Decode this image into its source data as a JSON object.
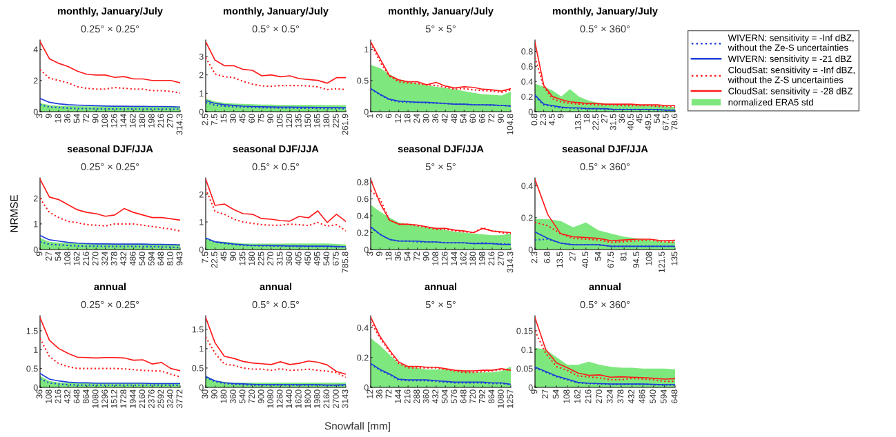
{
  "chart_data": [
    {
      "type": "line",
      "title": "monthly, January/July",
      "subtitle": "0.25° × 0.25°",
      "legend": "right",
      "categories": [
        "3",
        "9",
        "18",
        "36",
        "54",
        "72",
        "90",
        "108",
        "126",
        "144",
        "162",
        "180",
        "198",
        "216",
        "270",
        "314.3"
      ],
      "ylim": [
        0,
        4.6
      ],
      "yticks": [
        0,
        2,
        4
      ],
      "series": [
        {
          "name": "WIVERN: sensitivity = -Inf dBZ,\nwithout the Ze-S uncertainties",
          "color": "#1f3fd8",
          "line_style": "dotted",
          "values": [
            0.45,
            0.3,
            0.27,
            0.22,
            0.2,
            0.2,
            0.18,
            0.18,
            0.17,
            0.17,
            0.17,
            0.16,
            0.16,
            0.16,
            0.16,
            0.15
          ]
        },
        {
          "name": "WIVERN: sensitivity = -21 dBZ",
          "color": "#1f3fd8",
          "line_style": "solid",
          "values": [
            0.85,
            0.6,
            0.5,
            0.45,
            0.42,
            0.4,
            0.38,
            0.36,
            0.35,
            0.35,
            0.34,
            0.34,
            0.33,
            0.33,
            0.32,
            0.3
          ]
        },
        {
          "name": "CloudSat: sensitivity = -Inf dBZ,\nwithout the Z-S uncertainties",
          "color": "#ff1a1a",
          "line_style": "dotted",
          "values": [
            2.7,
            2.15,
            2.0,
            1.85,
            1.6,
            1.5,
            1.45,
            1.45,
            1.55,
            1.5,
            1.45,
            1.45,
            1.35,
            1.35,
            1.3,
            1.2
          ]
        },
        {
          "name": "CloudSat: sensitivity = -28 dBZ",
          "color": "#ff1a1a",
          "line_style": "solid",
          "values": [
            4.5,
            3.4,
            3.1,
            2.9,
            2.6,
            2.4,
            2.35,
            2.35,
            2.2,
            2.25,
            2.1,
            2.1,
            2.0,
            2.0,
            2.0,
            1.85
          ]
        },
        {
          "name": "normalized ERA5 std",
          "type": "area",
          "color": "#7ee87e",
          "values": [
            0.55,
            0.42,
            0.38,
            0.36,
            0.35,
            0.34,
            0.34,
            0.33,
            0.33,
            0.33,
            0.33,
            0.33,
            0.33,
            0.33,
            0.32,
            0.32
          ]
        }
      ]
    },
    {
      "type": "line",
      "title": "monthly, January/July",
      "subtitle": "0.5° × 0.5°",
      "categories": [
        "2.5",
        "7.5",
        "15",
        "30",
        "45",
        "60",
        "75",
        "90",
        "105",
        "120",
        "135",
        "150",
        "165",
        "180",
        "225",
        "261.9"
      ],
      "ylim": [
        0,
        3.9
      ],
      "yticks": [
        0,
        1,
        2,
        3
      ],
      "series": [
        {
          "color": "#1f3fd8",
          "line_style": "dotted",
          "values": [
            0.5,
            0.35,
            0.3,
            0.27,
            0.25,
            0.23,
            0.22,
            0.21,
            0.2,
            0.2,
            0.19,
            0.19,
            0.18,
            0.17,
            0.17,
            0.16
          ]
        },
        {
          "color": "#1f3fd8",
          "line_style": "solid",
          "values": [
            0.6,
            0.45,
            0.38,
            0.34,
            0.3,
            0.28,
            0.27,
            0.26,
            0.25,
            0.25,
            0.24,
            0.24,
            0.23,
            0.22,
            0.22,
            0.21
          ]
        },
        {
          "color": "#ff1a1a",
          "line_style": "dotted",
          "values": [
            2.95,
            2.05,
            1.9,
            1.85,
            1.65,
            1.5,
            1.4,
            1.38,
            1.42,
            1.42,
            1.42,
            1.4,
            1.35,
            1.2,
            1.25,
            1.2
          ]
        },
        {
          "color": "#ff1a1a",
          "line_style": "solid",
          "values": [
            3.8,
            2.8,
            2.5,
            2.5,
            2.3,
            2.25,
            1.95,
            2.0,
            1.9,
            1.95,
            1.8,
            1.75,
            1.7,
            1.55,
            1.85,
            1.85
          ]
        },
        {
          "type": "area",
          "color": "#7ee87e",
          "values": [
            0.7,
            0.55,
            0.48,
            0.44,
            0.42,
            0.4,
            0.38,
            0.38,
            0.37,
            0.37,
            0.37,
            0.37,
            0.37,
            0.36,
            0.36,
            0.36
          ]
        }
      ]
    },
    {
      "type": "line",
      "title": "monthly, January/July",
      "subtitle": "5° × 5°",
      "categories": [
        "1",
        "3",
        "6",
        "12",
        "18",
        "24",
        "30",
        "36",
        "42",
        "48",
        "54",
        "60",
        "66",
        "72",
        "90",
        "104.8"
      ],
      "ylim": [
        0,
        1.15
      ],
      "yticks": [
        0,
        0.5,
        1
      ],
      "series": [
        {
          "color": "#1f3fd8",
          "line_style": "dotted",
          "values": [
            0.36,
            0.27,
            0.19,
            0.16,
            0.15,
            0.15,
            0.14,
            0.14,
            0.13,
            0.12,
            0.12,
            0.11,
            0.11,
            0.1,
            0.1,
            0.09
          ]
        },
        {
          "color": "#1f3fd8",
          "line_style": "solid",
          "values": [
            0.37,
            0.28,
            0.2,
            0.17,
            0.16,
            0.15,
            0.15,
            0.14,
            0.13,
            0.12,
            0.12,
            0.11,
            0.11,
            0.11,
            0.1,
            0.09
          ]
        },
        {
          "color": "#ff1a1a",
          "line_style": "dotted",
          "values": [
            1.1,
            0.8,
            0.57,
            0.48,
            0.46,
            0.45,
            0.43,
            0.42,
            0.39,
            0.36,
            0.37,
            0.35,
            0.34,
            0.33,
            0.31,
            0.35
          ]
        },
        {
          "color": "#ff1a1a",
          "line_style": "solid",
          "values": [
            1.12,
            0.85,
            0.58,
            0.51,
            0.48,
            0.48,
            0.43,
            0.47,
            0.41,
            0.38,
            0.4,
            0.39,
            0.36,
            0.35,
            0.33,
            0.37
          ]
        },
        {
          "type": "area",
          "color": "#7ee87e",
          "values": [
            0.75,
            0.7,
            0.6,
            0.52,
            0.48,
            0.45,
            0.42,
            0.4,
            0.38,
            0.36,
            0.33,
            0.3,
            0.28,
            0.27,
            0.26,
            0.32
          ]
        }
      ]
    },
    {
      "type": "line",
      "title": "monthly, January/July",
      "subtitle": "0.5° × 360°",
      "categories": [
        "0.8",
        "2.3",
        "4.5",
        "9",
        null,
        "13.5",
        "18",
        "22.5",
        "27",
        "31.5",
        "36",
        "40.5",
        "45",
        "49.5",
        "54",
        "67.5",
        "78.6"
      ],
      "ylim": [
        0,
        0.95
      ],
      "yticks": [
        0,
        0.2,
        0.4,
        0.6,
        0.8
      ],
      "series": [
        {
          "color": "#1f3fd8",
          "line_style": "dotted",
          "values": [
            0.2,
            0.09,
            0.07,
            0.05,
            0.05,
            0.04,
            0.04,
            0.04,
            0.03,
            0.03,
            0.03,
            0.03,
            0.03,
            0.03,
            0.02,
            0.02,
            0.02
          ]
        },
        {
          "color": "#1f3fd8",
          "line_style": "solid",
          "values": [
            0.22,
            0.1,
            0.08,
            0.06,
            0.05,
            0.05,
            0.04,
            0.04,
            0.04,
            0.03,
            0.03,
            0.03,
            0.03,
            0.03,
            0.03,
            0.02,
            0.02
          ]
        },
        {
          "color": "#ff1a1a",
          "line_style": "dotted",
          "values": [
            0.72,
            0.33,
            0.17,
            0.13,
            0.11,
            0.1,
            0.1,
            0.09,
            0.09,
            0.09,
            0.08,
            0.08,
            0.08,
            0.08,
            0.07,
            0.07,
            0.06
          ]
        },
        {
          "color": "#ff1a1a",
          "line_style": "solid",
          "values": [
            0.92,
            0.35,
            0.2,
            0.16,
            0.13,
            0.12,
            0.11,
            0.11,
            0.1,
            0.1,
            0.1,
            0.1,
            0.09,
            0.09,
            0.09,
            0.08,
            0.08
          ]
        },
        {
          "type": "area",
          "color": "#7ee87e",
          "values": [
            0.37,
            0.33,
            0.28,
            0.2,
            0.3,
            0.2,
            0.15,
            0.12,
            0.11,
            0.1,
            0.1,
            0.09,
            0.09,
            0.08,
            0.08,
            0.07,
            0.06
          ]
        }
      ]
    },
    {
      "type": "line",
      "title": "seasonal DJF/JJA",
      "subtitle": "0.25° × 0.25°",
      "ylabel": "NRMSE",
      "categories": [
        "9",
        "27",
        "54",
        "108",
        "162",
        "216",
        "270",
        "324",
        "378",
        "432",
        "486",
        "540",
        "594",
        "648",
        "810",
        "943"
      ],
      "ylim": [
        0,
        2.8
      ],
      "yticks": [
        0,
        1,
        2
      ],
      "series": [
        {
          "color": "#1f3fd8",
          "line_style": "dotted",
          "values": [
            0.3,
            0.2,
            0.18,
            0.16,
            0.14,
            0.13,
            0.13,
            0.12,
            0.12,
            0.12,
            0.12,
            0.11,
            0.11,
            0.1,
            0.09,
            0.07
          ]
        },
        {
          "color": "#1f3fd8",
          "line_style": "solid",
          "values": [
            0.55,
            0.38,
            0.33,
            0.28,
            0.25,
            0.23,
            0.22,
            0.22,
            0.21,
            0.21,
            0.21,
            0.21,
            0.2,
            0.2,
            0.19,
            0.18
          ]
        },
        {
          "color": "#ff1a1a",
          "line_style": "dotted",
          "values": [
            2.0,
            1.45,
            1.25,
            1.1,
            1.05,
            0.97,
            0.95,
            0.92,
            1.0,
            1.0,
            1.0,
            0.95,
            0.9,
            0.85,
            0.8,
            0.72
          ]
        },
        {
          "color": "#ff1a1a",
          "line_style": "solid",
          "values": [
            2.75,
            2.05,
            1.95,
            1.75,
            1.55,
            1.45,
            1.4,
            1.3,
            1.35,
            1.6,
            1.45,
            1.35,
            1.25,
            1.25,
            1.2,
            1.15
          ]
        },
        {
          "type": "area",
          "color": "#7ee87e",
          "values": [
            0.45,
            0.3,
            0.27,
            0.25,
            0.24,
            0.23,
            0.23,
            0.22,
            0.22,
            0.22,
            0.22,
            0.22,
            0.22,
            0.22,
            0.2,
            0.2
          ]
        }
      ]
    },
    {
      "type": "line",
      "title": "seasonal DJF/JJA",
      "subtitle": "0.5° × 0.5°",
      "categories": [
        "7.5",
        "22.5",
        "45",
        "90",
        "135",
        "180",
        "225",
        "270",
        "315",
        "360",
        "405",
        "450",
        "495",
        "540",
        "675",
        "785.8"
      ],
      "ylim": [
        0,
        2.6
      ],
      "yticks": [
        0,
        1,
        2
      ],
      "series": [
        {
          "color": "#1f3fd8",
          "line_style": "dotted",
          "values": [
            0.4,
            0.27,
            0.22,
            0.18,
            0.15,
            0.14,
            0.13,
            0.13,
            0.12,
            0.12,
            0.11,
            0.11,
            0.11,
            0.1,
            0.1,
            0.09
          ]
        },
        {
          "color": "#1f3fd8",
          "line_style": "solid",
          "values": [
            0.42,
            0.28,
            0.24,
            0.2,
            0.17,
            0.15,
            0.15,
            0.14,
            0.14,
            0.13,
            0.13,
            0.12,
            0.12,
            0.12,
            0.11,
            0.1
          ]
        },
        {
          "color": "#ff1a1a",
          "line_style": "dotted",
          "values": [
            2.2,
            1.38,
            1.28,
            1.1,
            1.0,
            0.95,
            0.9,
            0.88,
            0.88,
            0.92,
            0.9,
            0.87,
            0.98,
            0.85,
            0.9,
            0.68
          ]
        },
        {
          "color": "#ff1a1a",
          "line_style": "solid",
          "values": [
            2.55,
            1.6,
            1.65,
            1.45,
            1.3,
            1.28,
            1.12,
            1.1,
            1.05,
            1.03,
            1.2,
            1.15,
            1.4,
            0.98,
            1.28,
            1.02
          ]
        },
        {
          "type": "area",
          "color": "#7ee87e",
          "values": [
            0.4,
            0.3,
            0.28,
            0.25,
            0.22,
            0.21,
            0.21,
            0.21,
            0.21,
            0.22,
            0.22,
            0.22,
            0.22,
            0.22,
            0.2,
            0.18
          ]
        }
      ]
    },
    {
      "type": "line",
      "title": "seasonal DJF/JJA",
      "subtitle": "5° × 5°",
      "categories": [
        "3",
        "9",
        "18",
        "36",
        "54",
        "72",
        "90",
        "108",
        "126",
        "144",
        "162",
        "180",
        "198",
        "216",
        "270",
        "314.3"
      ],
      "ylim": [
        0,
        0.85
      ],
      "yticks": [
        0,
        0.2,
        0.4,
        0.6,
        0.8
      ],
      "series": [
        {
          "color": "#1f3fd8",
          "line_style": "dotted",
          "values": [
            0.26,
            0.18,
            0.12,
            0.1,
            0.1,
            0.09,
            0.09,
            0.09,
            0.08,
            0.08,
            0.08,
            0.07,
            0.08,
            0.07,
            0.07,
            0.06
          ]
        },
        {
          "color": "#1f3fd8",
          "line_style": "solid",
          "values": [
            0.27,
            0.18,
            0.12,
            0.1,
            0.1,
            0.1,
            0.09,
            0.09,
            0.08,
            0.08,
            0.08,
            0.07,
            0.07,
            0.07,
            0.06,
            0.06
          ]
        },
        {
          "color": "#ff1a1a",
          "line_style": "dotted",
          "values": [
            0.7,
            0.6,
            0.35,
            0.3,
            0.3,
            0.28,
            0.26,
            0.24,
            0.24,
            0.22,
            0.21,
            0.2,
            0.26,
            0.22,
            0.2,
            0.19
          ]
        },
        {
          "color": "#ff1a1a",
          "line_style": "solid",
          "values": [
            0.83,
            0.55,
            0.35,
            0.3,
            0.3,
            0.29,
            0.27,
            0.25,
            0.25,
            0.23,
            0.22,
            0.2,
            0.25,
            0.22,
            0.21,
            0.2
          ]
        },
        {
          "type": "area",
          "color": "#7ee87e",
          "values": [
            0.53,
            0.45,
            0.38,
            0.32,
            0.3,
            0.28,
            0.26,
            0.25,
            0.23,
            0.21,
            0.2,
            0.19,
            0.18,
            0.17,
            0.17,
            0.19
          ]
        }
      ]
    },
    {
      "type": "line",
      "title": "seasonal DJF/JJA",
      "subtitle": "0.5° × 360°",
      "categories": [
        "2.3",
        "6.8",
        "13.5",
        "27",
        "40.5",
        "54",
        "67.5",
        "81",
        "94.5",
        "108",
        "121.5",
        "135"
      ],
      "ylim": [
        0,
        0.45
      ],
      "yticks": [
        0,
        0.2,
        0.4
      ],
      "series": [
        {
          "color": "#1f3fd8",
          "line_style": "dotted",
          "values": [
            0.06,
            0.065,
            0.04,
            0.03,
            0.03,
            0.03,
            0.02,
            0.02,
            0.02,
            0.02,
            0.02,
            0.02
          ]
        },
        {
          "color": "#1f3fd8",
          "line_style": "solid",
          "values": [
            0.11,
            0.07,
            0.04,
            0.03,
            0.03,
            0.03,
            0.02,
            0.02,
            0.02,
            0.02,
            0.02,
            0.02
          ]
        },
        {
          "color": "#ff1a1a",
          "line_style": "dotted",
          "values": [
            0.17,
            0.15,
            0.1,
            0.07,
            0.065,
            0.06,
            0.045,
            0.05,
            0.055,
            0.06,
            0.05,
            0.045
          ]
        },
        {
          "color": "#ff1a1a",
          "line_style": "solid",
          "values": [
            0.44,
            0.22,
            0.1,
            0.08,
            0.075,
            0.07,
            0.055,
            0.06,
            0.065,
            0.065,
            0.055,
            0.058
          ]
        },
        {
          "type": "area",
          "color": "#7ee87e",
          "values": [
            0.19,
            0.19,
            0.18,
            0.14,
            0.17,
            0.12,
            0.1,
            0.08,
            0.07,
            0.06,
            0.05,
            0.05
          ]
        }
      ]
    },
    {
      "type": "line",
      "title": "annual",
      "subtitle": "0.25° × 0.25°",
      "categories": [
        "36",
        "108",
        "216",
        "432",
        "648",
        "864",
        "1080",
        "1296",
        "1512",
        "1728",
        "1944",
        "2160",
        "2376",
        "2592",
        "3240",
        "3772"
      ],
      "ylim": [
        0,
        1.9
      ],
      "yticks": [
        0,
        0.5,
        1,
        1.5
      ],
      "series": [
        {
          "color": "#1f3fd8",
          "line_style": "dotted",
          "values": [
            0.22,
            0.12,
            0.09,
            0.07,
            0.06,
            0.06,
            0.06,
            0.06,
            0.06,
            0.06,
            0.06,
            0.06,
            0.06,
            0.06,
            0.06,
            0.05
          ]
        },
        {
          "color": "#1f3fd8",
          "line_style": "solid",
          "values": [
            0.37,
            0.22,
            0.17,
            0.14,
            0.12,
            0.12,
            0.11,
            0.11,
            0.11,
            0.11,
            0.11,
            0.11,
            0.1,
            0.1,
            0.1,
            0.1
          ]
        },
        {
          "color": "#ff1a1a",
          "line_style": "dotted",
          "values": [
            1.3,
            0.82,
            0.63,
            0.55,
            0.5,
            0.5,
            0.5,
            0.5,
            0.5,
            0.49,
            0.47,
            0.45,
            0.44,
            0.43,
            0.35,
            0.28
          ]
        },
        {
          "color": "#ff1a1a",
          "line_style": "solid",
          "values": [
            1.85,
            1.25,
            1.03,
            0.9,
            0.8,
            0.79,
            0.78,
            0.79,
            0.79,
            0.78,
            0.72,
            0.73,
            0.62,
            0.66,
            0.5,
            0.44
          ]
        },
        {
          "type": "area",
          "color": "#7ee87e",
          "values": [
            0.3,
            0.17,
            0.13,
            0.12,
            0.12,
            0.12,
            0.12,
            0.12,
            0.12,
            0.12,
            0.12,
            0.12,
            0.12,
            0.12,
            0.12,
            0.12
          ]
        }
      ]
    },
    {
      "type": "line",
      "title": "annual",
      "subtitle": "0.5° × 0.5°",
      "categories": [
        "30",
        "90",
        "180",
        "360",
        "540",
        "720",
        "900",
        "1080",
        "1260",
        "1440",
        "1620",
        "1800",
        "1980",
        "2160",
        "2700",
        "3143"
      ],
      "ylim": [
        0,
        1.85
      ],
      "yticks": [
        0,
        0.5,
        1,
        1.5
      ],
      "series": [
        {
          "color": "#1f3fd8",
          "line_style": "dotted",
          "values": [
            0.25,
            0.15,
            0.1,
            0.08,
            0.07,
            0.06,
            0.06,
            0.06,
            0.06,
            0.06,
            0.06,
            0.06,
            0.06,
            0.05,
            0.05,
            0.05
          ]
        },
        {
          "color": "#1f3fd8",
          "line_style": "solid",
          "values": [
            0.28,
            0.17,
            0.12,
            0.1,
            0.09,
            0.08,
            0.07,
            0.07,
            0.07,
            0.07,
            0.07,
            0.07,
            0.07,
            0.06,
            0.06,
            0.07
          ]
        },
        {
          "color": "#ff1a1a",
          "line_style": "dotted",
          "values": [
            1.3,
            0.88,
            0.6,
            0.57,
            0.5,
            0.47,
            0.47,
            0.44,
            0.48,
            0.44,
            0.45,
            0.47,
            0.44,
            0.42,
            0.38,
            0.26
          ]
        },
        {
          "color": "#ff1a1a",
          "line_style": "solid",
          "values": [
            1.8,
            1.15,
            0.8,
            0.75,
            0.67,
            0.63,
            0.61,
            0.59,
            0.66,
            0.59,
            0.62,
            0.68,
            0.65,
            0.58,
            0.41,
            0.34
          ]
        },
        {
          "type": "area",
          "color": "#7ee87e",
          "values": [
            0.3,
            0.18,
            0.14,
            0.12,
            0.12,
            0.12,
            0.12,
            0.12,
            0.12,
            0.12,
            0.12,
            0.12,
            0.12,
            0.12,
            0.12,
            0.12
          ]
        }
      ]
    },
    {
      "type": "line",
      "title": "annual",
      "subtitle": "5° × 5°",
      "xlabel": "Snowfall [mm]",
      "categories": [
        "12",
        "36",
        "72",
        "144",
        "216",
        "288",
        "360",
        "432",
        "504",
        "576",
        "648",
        "720",
        "792",
        "864",
        "1080",
        "1257"
      ],
      "ylim": [
        0,
        0.48
      ],
      "yticks": [
        0,
        0.2,
        0.4
      ],
      "series": [
        {
          "color": "#1f3fd8",
          "line_style": "dotted",
          "values": [
            0.155,
            0.115,
            0.085,
            0.05,
            0.045,
            0.045,
            0.045,
            0.04,
            0.035,
            0.03,
            0.03,
            0.03,
            0.03,
            0.025,
            0.025,
            0.02
          ]
        },
        {
          "color": "#1f3fd8",
          "line_style": "solid",
          "values": [
            0.16,
            0.12,
            0.09,
            0.055,
            0.05,
            0.05,
            0.05,
            0.045,
            0.04,
            0.035,
            0.035,
            0.035,
            0.035,
            0.03,
            0.03,
            0.02
          ]
        },
        {
          "color": "#ff1a1a",
          "line_style": "dotted",
          "values": [
            0.44,
            0.33,
            0.24,
            0.16,
            0.13,
            0.13,
            0.13,
            0.13,
            0.12,
            0.11,
            0.1,
            0.1,
            0.105,
            0.11,
            0.12,
            0.115
          ]
        },
        {
          "color": "#ff1a1a",
          "line_style": "solid",
          "values": [
            0.47,
            0.34,
            0.25,
            0.17,
            0.14,
            0.14,
            0.135,
            0.135,
            0.125,
            0.115,
            0.11,
            0.11,
            0.115,
            0.115,
            0.125,
            0.115
          ]
        },
        {
          "type": "area",
          "color": "#7ee87e",
          "values": [
            0.33,
            0.28,
            0.22,
            0.16,
            0.14,
            0.13,
            0.12,
            0.12,
            0.12,
            0.11,
            0.11,
            0.1,
            0.1,
            0.1,
            0.11,
            0.14
          ]
        }
      ]
    },
    {
      "type": "line",
      "title": "annual",
      "subtitle": "0.5° × 360°",
      "categories": [
        "9",
        "27",
        "54",
        "108",
        "162",
        "216",
        "270",
        "324",
        "378",
        "432",
        "486",
        "540",
        "594",
        "648"
      ],
      "ylim": [
        0,
        0.19
      ],
      "yticks": [
        0,
        0.05,
        0.1,
        0.15
      ],
      "series": [
        {
          "color": "#1f3fd8",
          "line_style": "dotted",
          "values": [
            0.052,
            0.04,
            0.028,
            0.02,
            0.012,
            0.01,
            0.009,
            0.008,
            0.008,
            0.008,
            0.008,
            0.007,
            0.006,
            0.006
          ]
        },
        {
          "color": "#1f3fd8",
          "line_style": "solid",
          "values": [
            0.054,
            0.042,
            0.03,
            0.022,
            0.013,
            0.011,
            0.01,
            0.009,
            0.009,
            0.009,
            0.009,
            0.008,
            0.007,
            0.007
          ]
        },
        {
          "color": "#ff1a1a",
          "line_style": "dotted",
          "values": [
            0.15,
            0.09,
            0.055,
            0.045,
            0.03,
            0.028,
            0.025,
            0.02,
            0.02,
            0.024,
            0.022,
            0.02,
            0.016,
            0.016
          ]
        },
        {
          "color": "#ff1a1a",
          "line_style": "solid",
          "values": [
            0.185,
            0.1,
            0.065,
            0.052,
            0.038,
            0.032,
            0.033,
            0.027,
            0.028,
            0.027,
            0.026,
            0.024,
            0.022,
            0.023
          ]
        },
        {
          "type": "area",
          "color": "#7ee87e",
          "values": [
            0.105,
            0.1,
            0.08,
            0.06,
            0.06,
            0.068,
            0.06,
            0.055,
            0.052,
            0.052,
            0.05,
            0.05,
            0.05,
            0.048
          ]
        }
      ]
    }
  ]
}
